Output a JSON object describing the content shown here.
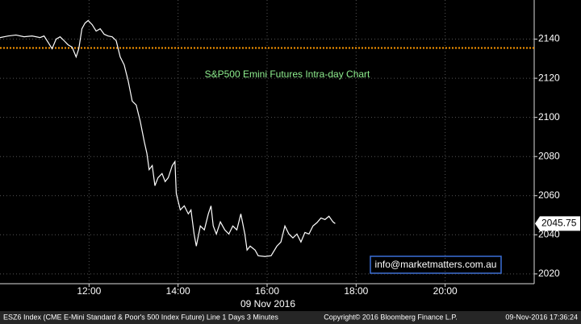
{
  "chart_data": {
    "type": "line",
    "title": "S&P500 Emini Futures Intra-day Chart",
    "x_axis_label": "09 Nov 2016",
    "x": [
      10.0,
      10.18,
      10.36,
      10.54,
      10.72,
      10.9,
      10.99,
      11.08,
      11.17,
      11.26,
      11.35,
      11.44,
      11.53,
      11.62,
      11.71,
      11.77,
      11.84,
      11.91,
      11.98,
      12.07,
      12.16,
      12.25,
      12.34,
      12.43,
      12.52,
      12.61,
      12.7,
      12.79,
      12.88,
      12.97,
      13.06,
      13.15,
      13.24,
      13.3,
      13.35,
      13.42,
      13.48,
      13.55,
      13.64,
      13.71,
      13.78,
      13.87,
      13.93,
      13.96,
      14.05,
      14.14,
      14.23,
      14.29,
      14.36,
      14.41,
      14.5,
      14.59,
      14.68,
      14.74,
      14.79,
      14.86,
      14.95,
      15.05,
      15.14,
      15.23,
      15.32,
      15.41,
      15.5,
      15.55,
      15.62,
      15.73,
      15.8,
      15.95,
      16.09,
      16.22,
      16.31,
      16.4,
      16.49,
      16.58,
      16.67,
      16.76,
      16.85,
      16.94,
      17.03,
      17.12,
      17.21,
      17.3,
      17.39,
      17.48,
      17.53
    ],
    "series": [
      {
        "name": "ESZ6 Index",
        "color": "#ffffff",
        "values": [
          2140.8,
          2141.6,
          2142.1,
          2141.2,
          2141.6,
          2140.8,
          2141.6,
          2138.4,
          2135.1,
          2140.0,
          2141.2,
          2139.2,
          2137.1,
          2135.9,
          2130.9,
          2135.1,
          2145.3,
          2148.2,
          2149.5,
          2147.4,
          2144.1,
          2145.3,
          2142.5,
          2141.6,
          2141.2,
          2139.2,
          2130.9,
          2126.8,
          2118.6,
          2108.3,
          2106.3,
          2098.0,
          2087.7,
          2081.6,
          2073.3,
          2075.4,
          2065.1,
          2069.2,
          2071.3,
          2067.2,
          2069.2,
          2075.4,
          2077.4,
          2061.0,
          2052.7,
          2054.8,
          2050.7,
          2052.7,
          2040.4,
          2034.2,
          2044.5,
          2042.5,
          2050.7,
          2054.8,
          2044.5,
          2040.4,
          2046.6,
          2042.5,
          2040.4,
          2044.5,
          2042.5,
          2050.7,
          2040.4,
          2032.2,
          2034.2,
          2032.2,
          2029.3,
          2028.9,
          2029.3,
          2034.2,
          2036.3,
          2044.5,
          2040.4,
          2038.4,
          2040.4,
          2036.3,
          2041.2,
          2040.4,
          2044.5,
          2046.2,
          2048.6,
          2047.8,
          2049.5,
          2046.6,
          2045.75
        ]
      }
    ],
    "xlim": [
      10,
      22
    ],
    "xticks": [
      {
        "value": 12,
        "label": "12:00"
      },
      {
        "value": 14,
        "label": "14:00"
      },
      {
        "value": 16,
        "label": "16:00"
      },
      {
        "value": 18,
        "label": "18:00"
      },
      {
        "value": 20,
        "label": "20:00"
      }
    ],
    "ylim": [
      2015,
      2160
    ],
    "yticks": [
      2020,
      2040,
      2060,
      2080,
      2100,
      2120,
      2140
    ],
    "grid": true,
    "reference_line": {
      "value": 2135.5,
      "color": "#ff9900"
    },
    "last_price": 2045.75,
    "annotation": "info@marketmatters.com.au",
    "footer": {
      "left": "ESZ6 Index (CME E-Mini Standard & Poor's 500 Index Future) Line 1 Days 3 Minutes",
      "center": "Copyright© 2016 Bloomberg Finance L.P.",
      "right": "09-Nov-2016 17:36:24"
    }
  }
}
